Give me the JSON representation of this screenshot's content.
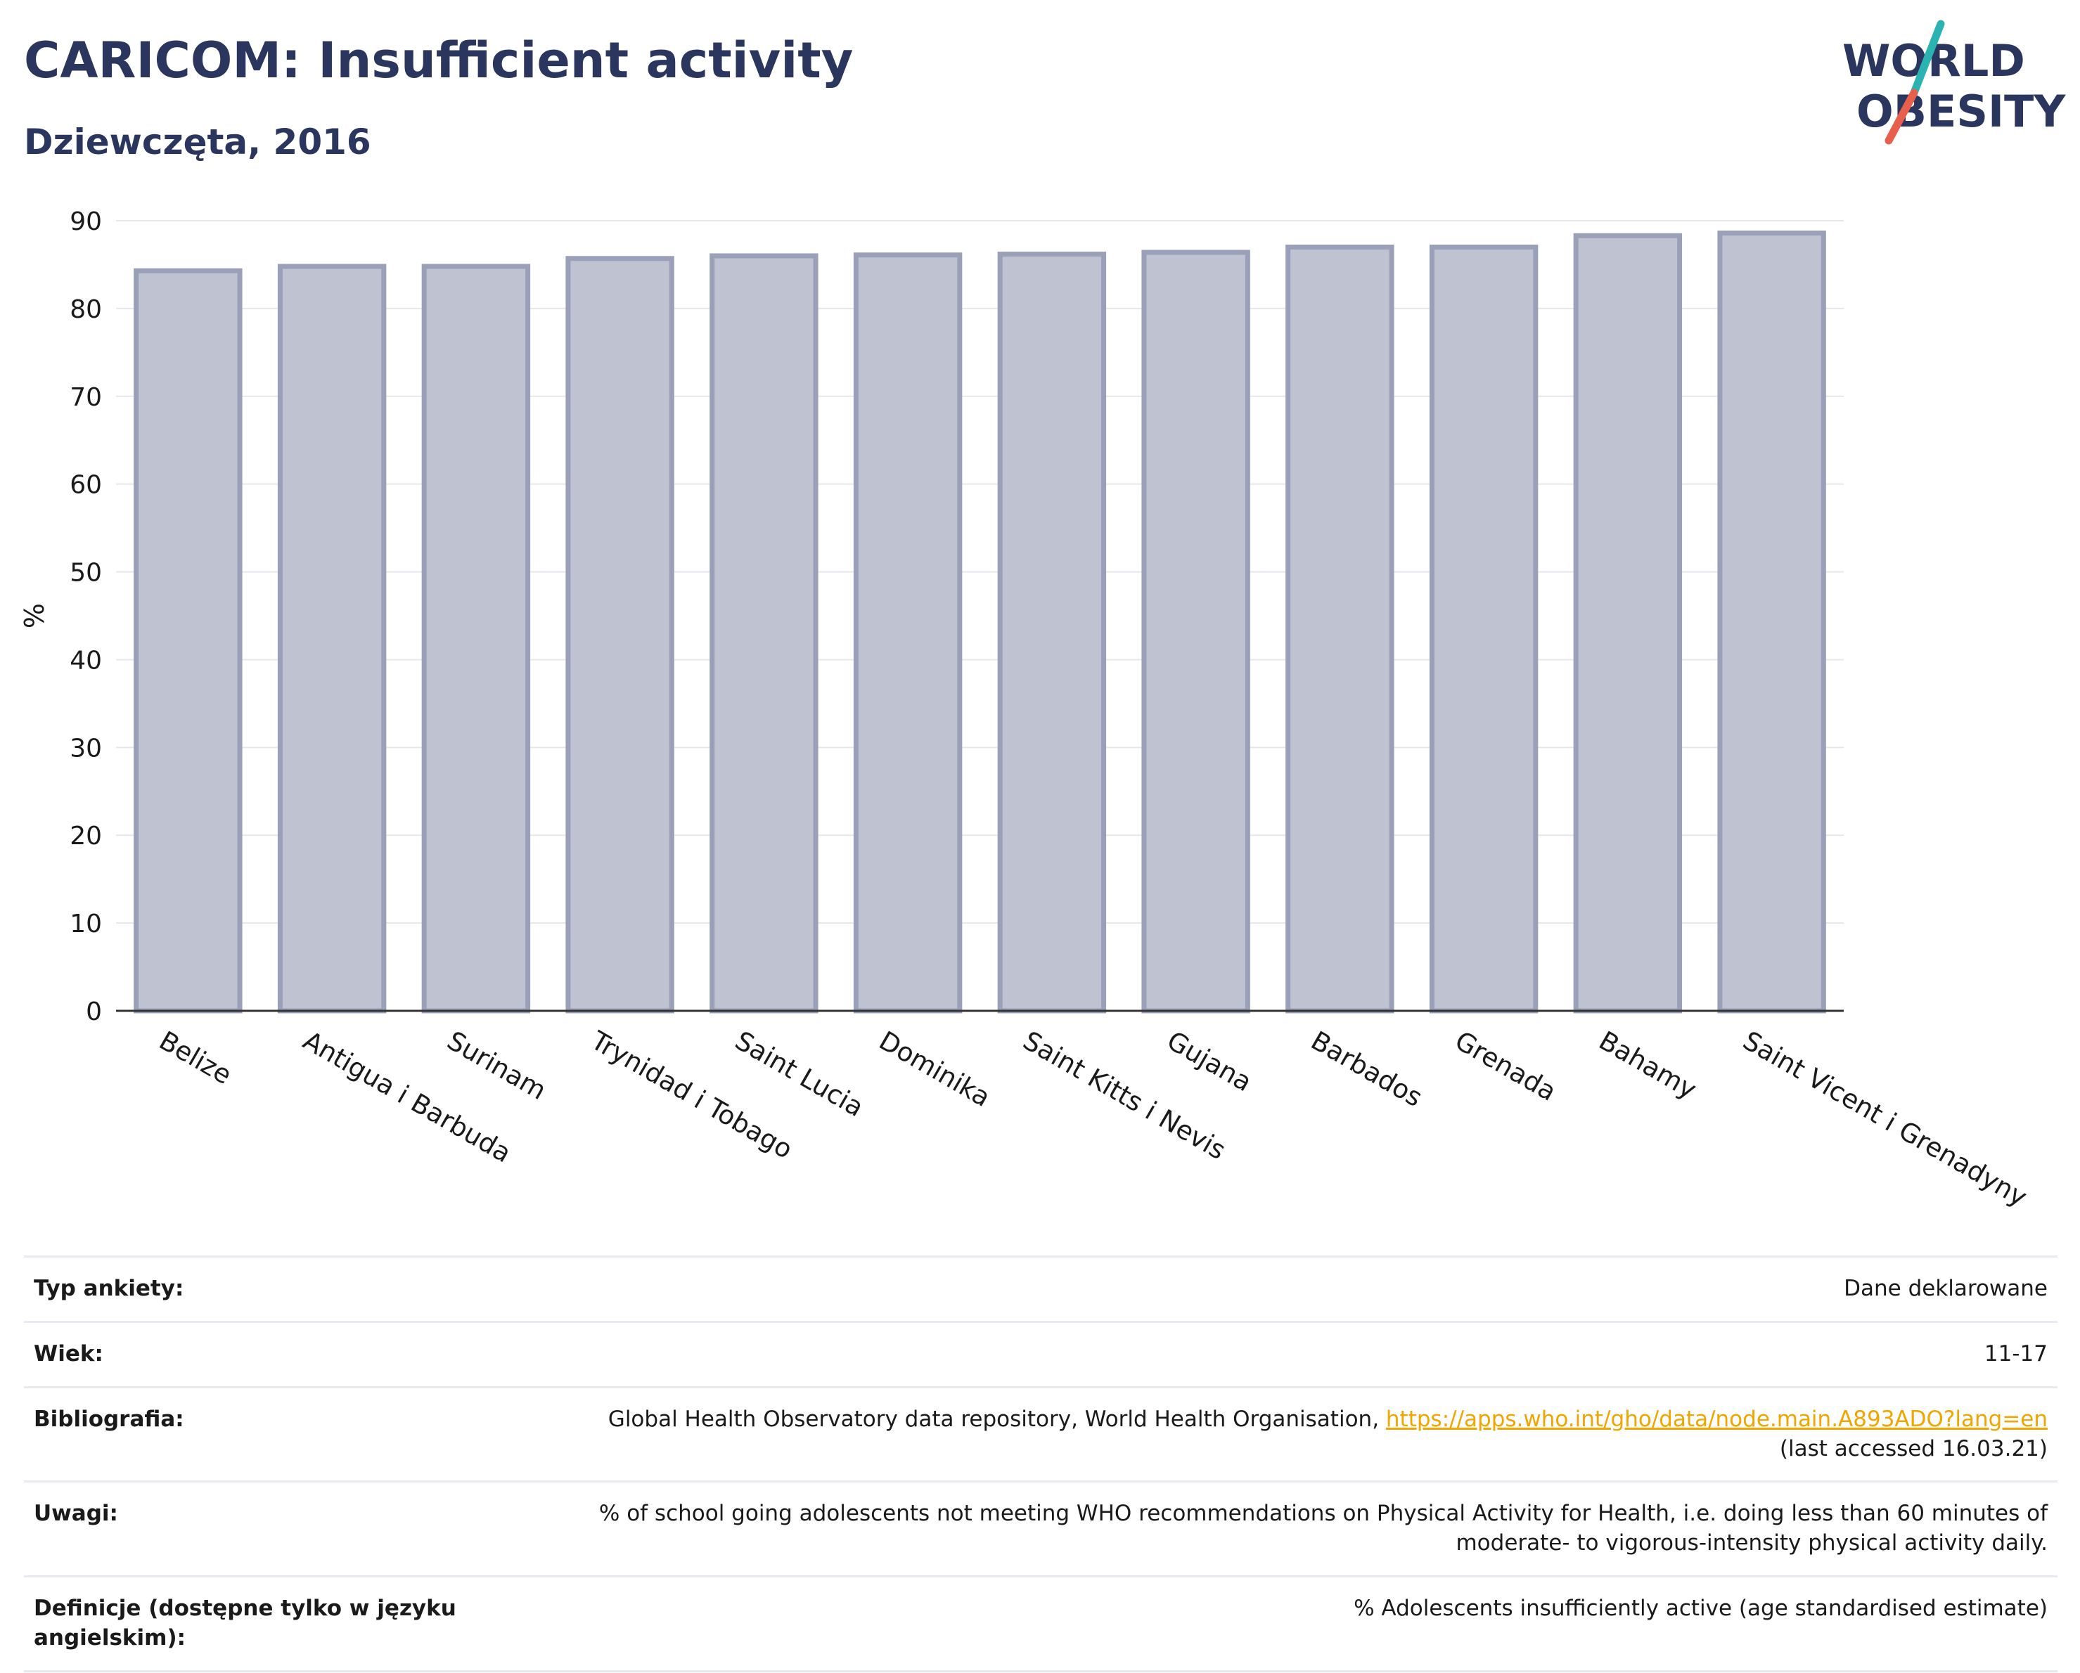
{
  "title": "CARICOM: Insufficient activity",
  "subtitle": "Dziewczęta, 2016",
  "logo": {
    "line1": "WORLD",
    "line2": "OBESITY",
    "accent_teal": "#2ab3b1",
    "accent_red": "#e8604c",
    "text_color": "#2b365e"
  },
  "chart_data": {
    "type": "bar",
    "categories": [
      "Belize",
      "Antigua i Barbuda",
      "Surinam",
      "Trynidad i Tobago",
      "Saint Lucia",
      "Dominika",
      "Saint Kitts i Nevis",
      "Gujana",
      "Barbados",
      "Grenada",
      "Bahamy",
      "Saint Vicent i Grenadyny"
    ],
    "values": [
      84.3,
      84.8,
      84.8,
      85.7,
      86.0,
      86.1,
      86.2,
      86.4,
      87.0,
      87.0,
      88.3,
      88.6
    ],
    "ylabel": "%",
    "ylim": [
      0,
      90
    ],
    "yticks": [
      0,
      10,
      20,
      30,
      40,
      50,
      60,
      70,
      80,
      90
    ],
    "grid": true,
    "bar_fill": "#bfc2d0",
    "bar_stroke": "#9aa0b8"
  },
  "info": {
    "survey": {
      "label": "Typ ankiety:",
      "value": "Dane deklarowane"
    },
    "age": {
      "label": "Wiek:",
      "value": "11-17"
    },
    "bibliography": {
      "label": "Bibliografia:",
      "text": "Global Health Observatory data repository, World Health Organisation, ",
      "link": "https://apps.who.int/gho/data/node.main.A893ADO?lang=en",
      "note": "(last accessed 16.03.21)"
    },
    "notes": {
      "label": "Uwagi:",
      "line1": "% of school going adolescents not meeting WHO recommendations on Physical Activity for Health, i.e. doing less than 60 minutes of",
      "line2": "moderate- to vigorous-intensity physical activity daily."
    },
    "definitions": {
      "label": "Definicje (dostępne tylko w języku angielskim):",
      "value": "% Adolescents insufficiently active (age standardised estimate)"
    }
  }
}
